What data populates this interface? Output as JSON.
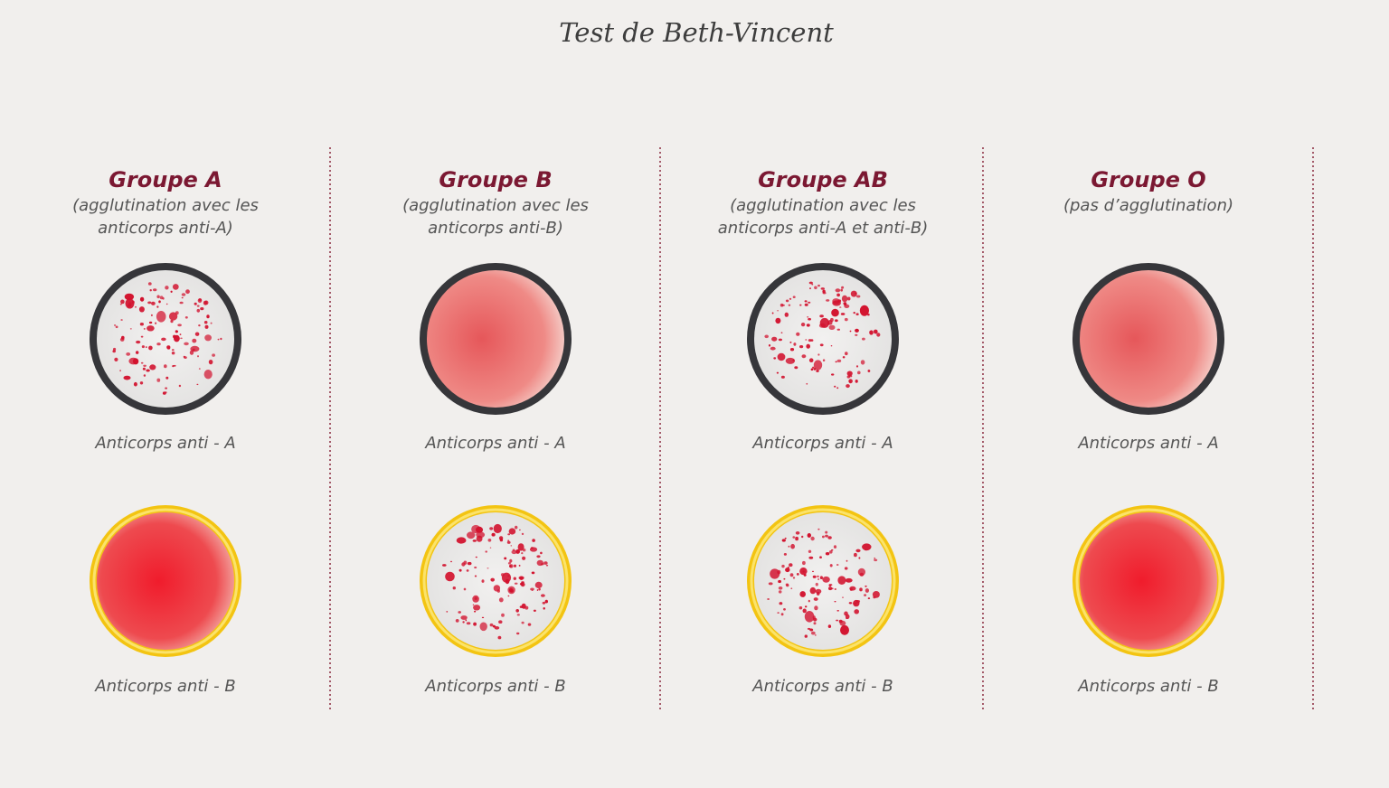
{
  "title": "Test de Beth-Vincent",
  "groups": [
    {
      "title": "Groupe A",
      "subtitle": [
        "(agglutination avec les",
        "anticorps anti-A)"
      ],
      "wells": [
        {
          "label": "Anticorps anti - A"
        },
        {
          "label": "Anticorps anti - B"
        }
      ]
    },
    {
      "title": "Groupe B",
      "subtitle": [
        "(agglutination avec les",
        "anticorps anti-B)"
      ],
      "wells": [
        {
          "label": "Anticorps anti - A"
        },
        {
          "label": "Anticorps anti - B"
        }
      ]
    },
    {
      "title": "Groupe AB",
      "subtitle": [
        "(agglutination avec les",
        "anticorps anti-A et anti-B)"
      ],
      "wells": [
        {
          "label": "Anticorps anti - A"
        },
        {
          "label": "Anticorps anti - B"
        }
      ]
    },
    {
      "title": "Groupe O",
      "subtitle": [
        "(pas d’agglutination)"
      ],
      "wells": [
        {
          "label": "Anticorps anti - A"
        },
        {
          "label": "Anticorps anti - B"
        }
      ]
    }
  ]
}
